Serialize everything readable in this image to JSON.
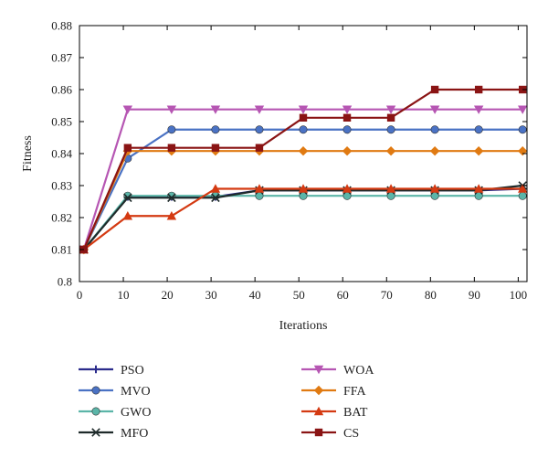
{
  "chart_data": {
    "type": "line",
    "title": "",
    "xlabel": "Iterations",
    "ylabel": "Fitness",
    "xlim": [
      0,
      102
    ],
    "ylim": [
      0.8,
      0.88
    ],
    "xticks": [
      0,
      10,
      20,
      30,
      40,
      50,
      60,
      70,
      80,
      90,
      100
    ],
    "yticks": [
      0.8,
      0.81,
      0.82,
      0.83,
      0.84,
      0.85,
      0.86,
      0.87,
      0.88
    ],
    "xtick_labels": [
      "0",
      "10",
      "20",
      "30",
      "40",
      "50",
      "60",
      "70",
      "80",
      "90",
      "100"
    ],
    "ytick_labels": [
      "0.8",
      "0.81",
      "0.82",
      "0.83",
      "0.84",
      "0.85",
      "0.86",
      "0.87",
      "0.88"
    ],
    "grid": false,
    "legend_position": "bottom",
    "x": [
      1,
      11,
      21,
      31,
      41,
      51,
      61,
      71,
      81,
      91,
      101
    ],
    "series": [
      {
        "name": "PSO",
        "color": "#2b2c8c",
        "marker": "plus",
        "values": [
          0.81,
          0.8265,
          0.8265,
          0.8265,
          0.8285,
          0.8285,
          0.8285,
          0.8285,
          0.8285,
          0.8285,
          0.829
        ]
      },
      {
        "name": "MVO",
        "color": "#4a72c4",
        "marker": "circle",
        "values": [
          0.81,
          0.8385,
          0.8475,
          0.8475,
          0.8475,
          0.8475,
          0.8475,
          0.8475,
          0.8475,
          0.8475,
          0.8475
        ]
      },
      {
        "name": "GWO",
        "color": "#5bb5a8",
        "marker": "circle",
        "values": [
          0.81,
          0.8268,
          0.8268,
          0.8268,
          0.8268,
          0.8268,
          0.8268,
          0.8268,
          0.8268,
          0.8268,
          0.8268
        ]
      },
      {
        "name": "MFO",
        "color": "#1e2a2a",
        "marker": "star",
        "values": [
          0.81,
          0.8262,
          0.8262,
          0.8262,
          0.8285,
          0.8285,
          0.8285,
          0.8285,
          0.8285,
          0.8285,
          0.83
        ]
      },
      {
        "name": "WOA",
        "color": "#b656b3",
        "marker": "triangle-down",
        "values": [
          0.81,
          0.8538,
          0.8538,
          0.8538,
          0.8538,
          0.8538,
          0.8538,
          0.8538,
          0.8538,
          0.8538,
          0.8538
        ]
      },
      {
        "name": "FFA",
        "color": "#e07a12",
        "marker": "diamond",
        "values": [
          0.81,
          0.8408,
          0.8408,
          0.8408,
          0.8408,
          0.8408,
          0.8408,
          0.8408,
          0.8408,
          0.8408,
          0.8408
        ]
      },
      {
        "name": "BAT",
        "color": "#d43a12",
        "marker": "triangle-up",
        "values": [
          0.81,
          0.8205,
          0.8205,
          0.829,
          0.829,
          0.829,
          0.829,
          0.829,
          0.829,
          0.829,
          0.829
        ]
      },
      {
        "name": "CS",
        "color": "#8a1414",
        "marker": "square",
        "values": [
          0.81,
          0.8418,
          0.8418,
          0.8418,
          0.8418,
          0.8512,
          0.8512,
          0.8512,
          0.86,
          0.86,
          0.86
        ]
      }
    ]
  }
}
